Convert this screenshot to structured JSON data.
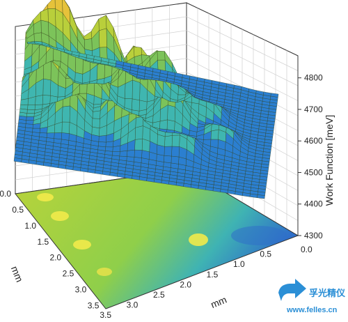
{
  "chart_data": {
    "type": "surface3d",
    "title": "",
    "x_axis": {
      "label": "mm",
      "ticks": [
        "0.5",
        "1.0",
        "1.5",
        "2.0",
        "2.5",
        "3.0",
        "3.5"
      ],
      "range": [
        0,
        3.6
      ]
    },
    "y_axis": {
      "label": "mm",
      "ticks": [
        "0.0",
        "0.5",
        "1.0",
        "1.5",
        "2.0",
        "2.5",
        "3.0",
        "3.5"
      ],
      "range": [
        0,
        3.6
      ]
    },
    "z_axis": {
      "label": "Work Function [meV]",
      "ticks": [
        "4300",
        "4400",
        "4500",
        "4600",
        "4700",
        "4800"
      ],
      "range": [
        4300,
        4870
      ]
    },
    "x_origin_tick": "0.0",
    "projection": "contour map on floor",
    "grid": true,
    "colormap": [
      "#1f3fa6",
      "#2b7fd0",
      "#3fb6b0",
      "#7cc35a",
      "#b9cf3b",
      "#e6c23a",
      "#e07a2a",
      "#c0282a"
    ]
  },
  "watermark": {
    "name": "孚光精仪",
    "url": "www.felles.cn"
  }
}
